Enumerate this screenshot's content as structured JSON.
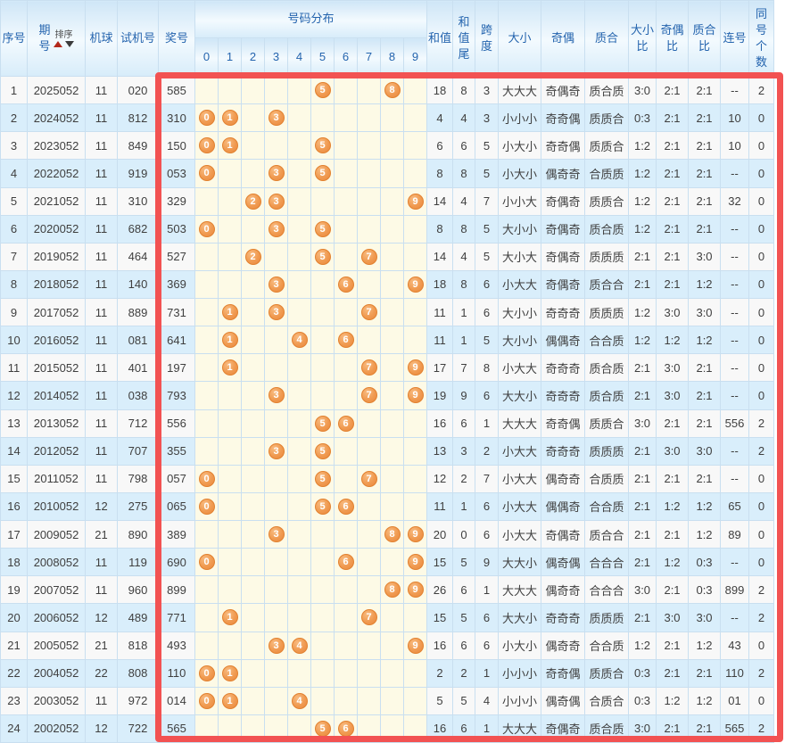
{
  "colors": {
    "header_text": "#2464ae",
    "row_alt_blue": "#d9eefb",
    "distribution_cell_yellow": "#fdfae6",
    "ball_orange": "#f09a50",
    "highlight_red": "#f25252"
  },
  "table": {
    "header": {
      "seq": "序号",
      "period": "期号",
      "sort": "排序",
      "machine": "机球",
      "test": "试机号",
      "prize": "奖号",
      "distribution": "号码分布",
      "digits": [
        "0",
        "1",
        "2",
        "3",
        "4",
        "5",
        "6",
        "7",
        "8",
        "9"
      ],
      "sum": "和值",
      "sum_tail": "和值尾",
      "span": "跨度",
      "size": "大小",
      "parity": "奇偶",
      "prime": "质合",
      "size_ratio": "大小比",
      "parity_ratio": "奇偶比",
      "prime_ratio": "质合比",
      "consecutive": "连号",
      "same_count": "同号个数"
    },
    "rows": [
      {
        "seq": "1",
        "period": "2025052",
        "machine": "11",
        "test": "020",
        "prize": "585",
        "balls": [
          5,
          8
        ],
        "sum": "18",
        "sum_tail": "8",
        "span": "3",
        "size": "大大大",
        "parity": "奇偶奇",
        "prime": "质合质",
        "size_ratio": "3:0",
        "parity_ratio": "2:1",
        "prime_ratio": "2:1",
        "consecutive": "--",
        "same_count": "2"
      },
      {
        "seq": "2",
        "period": "2024052",
        "machine": "11",
        "test": "812",
        "prize": "310",
        "balls": [
          0,
          1,
          3
        ],
        "sum": "4",
        "sum_tail": "4",
        "span": "3",
        "size": "小小小",
        "parity": "奇奇偶",
        "prime": "质质合",
        "size_ratio": "0:3",
        "parity_ratio": "2:1",
        "prime_ratio": "2:1",
        "consecutive": "10",
        "same_count": "0"
      },
      {
        "seq": "3",
        "period": "2023052",
        "machine": "11",
        "test": "849",
        "prize": "150",
        "balls": [
          0,
          1,
          5
        ],
        "sum": "6",
        "sum_tail": "6",
        "span": "5",
        "size": "小大小",
        "parity": "奇奇偶",
        "prime": "质质合",
        "size_ratio": "1:2",
        "parity_ratio": "2:1",
        "prime_ratio": "2:1",
        "consecutive": "10",
        "same_count": "0"
      },
      {
        "seq": "4",
        "period": "2022052",
        "machine": "11",
        "test": "919",
        "prize": "053",
        "balls": [
          0,
          3,
          5
        ],
        "sum": "8",
        "sum_tail": "8",
        "span": "5",
        "size": "小大小",
        "parity": "偶奇奇",
        "prime": "合质质",
        "size_ratio": "1:2",
        "parity_ratio": "2:1",
        "prime_ratio": "2:1",
        "consecutive": "--",
        "same_count": "0"
      },
      {
        "seq": "5",
        "period": "2021052",
        "machine": "11",
        "test": "310",
        "prize": "329",
        "balls": [
          2,
          3,
          9
        ],
        "sum": "14",
        "sum_tail": "4",
        "span": "7",
        "size": "小小大",
        "parity": "奇偶奇",
        "prime": "质质合",
        "size_ratio": "1:2",
        "parity_ratio": "2:1",
        "prime_ratio": "2:1",
        "consecutive": "32",
        "same_count": "0"
      },
      {
        "seq": "6",
        "period": "2020052",
        "machine": "11",
        "test": "682",
        "prize": "503",
        "balls": [
          0,
          3,
          5
        ],
        "sum": "8",
        "sum_tail": "8",
        "span": "5",
        "size": "大小小",
        "parity": "奇偶奇",
        "prime": "质合质",
        "size_ratio": "1:2",
        "parity_ratio": "2:1",
        "prime_ratio": "2:1",
        "consecutive": "--",
        "same_count": "0"
      },
      {
        "seq": "7",
        "period": "2019052",
        "machine": "11",
        "test": "464",
        "prize": "527",
        "balls": [
          2,
          5,
          7
        ],
        "sum": "14",
        "sum_tail": "4",
        "span": "5",
        "size": "大小大",
        "parity": "奇偶奇",
        "prime": "质质质",
        "size_ratio": "2:1",
        "parity_ratio": "2:1",
        "prime_ratio": "3:0",
        "consecutive": "--",
        "same_count": "0"
      },
      {
        "seq": "8",
        "period": "2018052",
        "machine": "11",
        "test": "140",
        "prize": "369",
        "balls": [
          3,
          6,
          9
        ],
        "sum": "18",
        "sum_tail": "8",
        "span": "6",
        "size": "小大大",
        "parity": "奇偶奇",
        "prime": "质合合",
        "size_ratio": "2:1",
        "parity_ratio": "2:1",
        "prime_ratio": "1:2",
        "consecutive": "--",
        "same_count": "0"
      },
      {
        "seq": "9",
        "period": "2017052",
        "machine": "11",
        "test": "889",
        "prize": "731",
        "balls": [
          1,
          3,
          7
        ],
        "sum": "11",
        "sum_tail": "1",
        "span": "6",
        "size": "大小小",
        "parity": "奇奇奇",
        "prime": "质质质",
        "size_ratio": "1:2",
        "parity_ratio": "3:0",
        "prime_ratio": "3:0",
        "consecutive": "--",
        "same_count": "0"
      },
      {
        "seq": "10",
        "period": "2016052",
        "machine": "11",
        "test": "081",
        "prize": "641",
        "balls": [
          1,
          4,
          6
        ],
        "sum": "11",
        "sum_tail": "1",
        "span": "5",
        "size": "大小小",
        "parity": "偶偶奇",
        "prime": "合合质",
        "size_ratio": "1:2",
        "parity_ratio": "1:2",
        "prime_ratio": "1:2",
        "consecutive": "--",
        "same_count": "0"
      },
      {
        "seq": "11",
        "period": "2015052",
        "machine": "11",
        "test": "401",
        "prize": "197",
        "balls": [
          1,
          7,
          9
        ],
        "sum": "17",
        "sum_tail": "7",
        "span": "8",
        "size": "小大大",
        "parity": "奇奇奇",
        "prime": "质合质",
        "size_ratio": "2:1",
        "parity_ratio": "3:0",
        "prime_ratio": "2:1",
        "consecutive": "--",
        "same_count": "0"
      },
      {
        "seq": "12",
        "period": "2014052",
        "machine": "11",
        "test": "038",
        "prize": "793",
        "balls": [
          3,
          7,
          9
        ],
        "sum": "19",
        "sum_tail": "9",
        "span": "6",
        "size": "大大小",
        "parity": "奇奇奇",
        "prime": "质合质",
        "size_ratio": "2:1",
        "parity_ratio": "3:0",
        "prime_ratio": "2:1",
        "consecutive": "--",
        "same_count": "0"
      },
      {
        "seq": "13",
        "period": "2013052",
        "machine": "11",
        "test": "712",
        "prize": "556",
        "balls": [
          5,
          6
        ],
        "sum": "16",
        "sum_tail": "6",
        "span": "1",
        "size": "大大大",
        "parity": "奇奇偶",
        "prime": "质质合",
        "size_ratio": "3:0",
        "parity_ratio": "2:1",
        "prime_ratio": "2:1",
        "consecutive": "556",
        "same_count": "2"
      },
      {
        "seq": "14",
        "period": "2012052",
        "machine": "11",
        "test": "707",
        "prize": "355",
        "balls": [
          3,
          5
        ],
        "sum": "13",
        "sum_tail": "3",
        "span": "2",
        "size": "小大大",
        "parity": "奇奇奇",
        "prime": "质质质",
        "size_ratio": "2:1",
        "parity_ratio": "3:0",
        "prime_ratio": "3:0",
        "consecutive": "--",
        "same_count": "2"
      },
      {
        "seq": "15",
        "period": "2011052",
        "machine": "11",
        "test": "798",
        "prize": "057",
        "balls": [
          0,
          5,
          7
        ],
        "sum": "12",
        "sum_tail": "2",
        "span": "7",
        "size": "小大大",
        "parity": "偶奇奇",
        "prime": "合质质",
        "size_ratio": "2:1",
        "parity_ratio": "2:1",
        "prime_ratio": "2:1",
        "consecutive": "--",
        "same_count": "0"
      },
      {
        "seq": "16",
        "period": "2010052",
        "machine": "12",
        "test": "275",
        "prize": "065",
        "balls": [
          0,
          5,
          6
        ],
        "sum": "11",
        "sum_tail": "1",
        "span": "6",
        "size": "小大大",
        "parity": "偶偶奇",
        "prime": "合合质",
        "size_ratio": "2:1",
        "parity_ratio": "1:2",
        "prime_ratio": "1:2",
        "consecutive": "65",
        "same_count": "0"
      },
      {
        "seq": "17",
        "period": "2009052",
        "machine": "21",
        "test": "890",
        "prize": "389",
        "balls": [
          3,
          8,
          9
        ],
        "sum": "20",
        "sum_tail": "0",
        "span": "6",
        "size": "小大大",
        "parity": "奇偶奇",
        "prime": "质合合",
        "size_ratio": "2:1",
        "parity_ratio": "2:1",
        "prime_ratio": "1:2",
        "consecutive": "89",
        "same_count": "0"
      },
      {
        "seq": "18",
        "period": "2008052",
        "machine": "11",
        "test": "119",
        "prize": "690",
        "balls": [
          0,
          6,
          9
        ],
        "sum": "15",
        "sum_tail": "5",
        "span": "9",
        "size": "大大小",
        "parity": "偶奇偶",
        "prime": "合合合",
        "size_ratio": "2:1",
        "parity_ratio": "1:2",
        "prime_ratio": "0:3",
        "consecutive": "--",
        "same_count": "0"
      },
      {
        "seq": "19",
        "period": "2007052",
        "machine": "11",
        "test": "960",
        "prize": "899",
        "balls": [
          8,
          9
        ],
        "sum": "26",
        "sum_tail": "6",
        "span": "1",
        "size": "大大大",
        "parity": "偶奇奇",
        "prime": "合合合",
        "size_ratio": "3:0",
        "parity_ratio": "2:1",
        "prime_ratio": "0:3",
        "consecutive": "899",
        "same_count": "2"
      },
      {
        "seq": "20",
        "period": "2006052",
        "machine": "12",
        "test": "489",
        "prize": "771",
        "balls": [
          1,
          7
        ],
        "sum": "15",
        "sum_tail": "5",
        "span": "6",
        "size": "大大小",
        "parity": "奇奇奇",
        "prime": "质质质",
        "size_ratio": "2:1",
        "parity_ratio": "3:0",
        "prime_ratio": "3:0",
        "consecutive": "--",
        "same_count": "2"
      },
      {
        "seq": "21",
        "period": "2005052",
        "machine": "21",
        "test": "818",
        "prize": "493",
        "balls": [
          3,
          4,
          9
        ],
        "sum": "16",
        "sum_tail": "6",
        "span": "6",
        "size": "小大小",
        "parity": "偶奇奇",
        "prime": "合合质",
        "size_ratio": "1:2",
        "parity_ratio": "2:1",
        "prime_ratio": "1:2",
        "consecutive": "43",
        "same_count": "0"
      },
      {
        "seq": "22",
        "period": "2004052",
        "machine": "22",
        "test": "808",
        "prize": "110",
        "balls": [
          0,
          1
        ],
        "sum": "2",
        "sum_tail": "2",
        "span": "1",
        "size": "小小小",
        "parity": "奇奇偶",
        "prime": "质质合",
        "size_ratio": "0:3",
        "parity_ratio": "2:1",
        "prime_ratio": "2:1",
        "consecutive": "110",
        "same_count": "2"
      },
      {
        "seq": "23",
        "period": "2003052",
        "machine": "11",
        "test": "972",
        "prize": "014",
        "balls": [
          0,
          1,
          4
        ],
        "sum": "5",
        "sum_tail": "5",
        "span": "4",
        "size": "小小小",
        "parity": "偶奇偶",
        "prime": "合质合",
        "size_ratio": "0:3",
        "parity_ratio": "1:2",
        "prime_ratio": "1:2",
        "consecutive": "01",
        "same_count": "0"
      },
      {
        "seq": "24",
        "period": "2002052",
        "machine": "12",
        "test": "722",
        "prize": "565",
        "balls": [
          5,
          6
        ],
        "sum": "16",
        "sum_tail": "6",
        "span": "1",
        "size": "大大大",
        "parity": "奇偶奇",
        "prime": "质合质",
        "size_ratio": "3:0",
        "parity_ratio": "2:1",
        "prime_ratio": "2:1",
        "consecutive": "565",
        "same_count": "2"
      }
    ]
  }
}
